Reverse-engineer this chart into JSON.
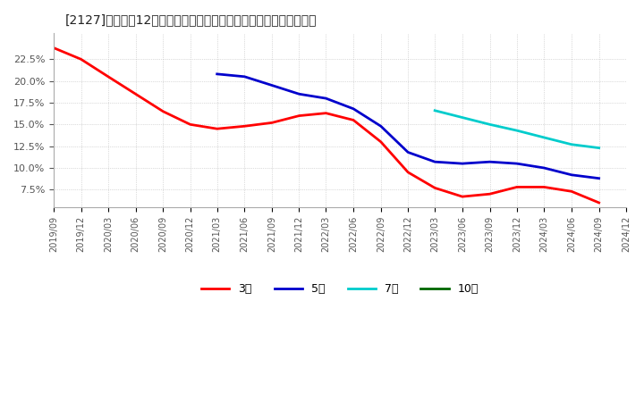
{
  "title": "[2127]　売上高12か月移動合計の対前年同期増減率の平均値の推移",
  "ylabel": "",
  "background_color": "#ffffff",
  "plot_bg_color": "#ffffff",
  "grid_color": "#aaaaaa",
  "ylim": [
    0.055,
    0.255
  ],
  "yticks": [
    0.075,
    0.1,
    0.125,
    0.15,
    0.175,
    0.2,
    0.225
  ],
  "series": {
    "3年": {
      "color": "#ff0000",
      "dates": [
        "2019/09",
        "2019/12",
        "2020/03",
        "2020/06",
        "2020/09",
        "2020/12",
        "2021/03",
        "2021/06",
        "2021/09",
        "2021/12",
        "2022/03",
        "2022/06",
        "2022/09",
        "2022/12",
        "2023/03",
        "2023/06",
        "2023/09",
        "2023/12",
        "2024/03",
        "2024/06",
        "2024/09"
      ],
      "values": [
        0.238,
        0.225,
        0.205,
        0.185,
        0.165,
        0.15,
        0.145,
        0.148,
        0.152,
        0.16,
        0.163,
        0.155,
        0.13,
        0.095,
        0.077,
        0.067,
        0.07,
        0.078,
        0.078,
        0.073,
        0.06
      ]
    },
    "5年": {
      "color": "#0000cc",
      "dates": [
        "2021/03",
        "2021/06",
        "2021/09",
        "2021/12",
        "2022/03",
        "2022/06",
        "2022/09",
        "2022/12",
        "2023/03",
        "2023/06",
        "2023/09",
        "2023/12",
        "2024/03",
        "2024/06",
        "2024/09"
      ],
      "values": [
        0.208,
        0.205,
        0.195,
        0.185,
        0.18,
        0.168,
        0.148,
        0.118,
        0.107,
        0.105,
        0.107,
        0.105,
        0.1,
        0.092,
        0.088
      ]
    },
    "7年": {
      "color": "#00cccc",
      "dates": [
        "2023/03",
        "2023/06",
        "2023/09",
        "2023/12",
        "2024/03",
        "2024/06",
        "2024/09"
      ],
      "values": [
        0.166,
        0.158,
        0.15,
        0.143,
        0.135,
        0.127,
        0.123
      ]
    },
    "10年": {
      "color": "#006600",
      "dates": [],
      "values": []
    }
  },
  "legend_labels": [
    "3年",
    "5年",
    "7年",
    "10年"
  ],
  "legend_colors": [
    "#ff0000",
    "#0000cc",
    "#00cccc",
    "#006600"
  ],
  "x_tick_dates": [
    "2019/09",
    "2019/12",
    "2020/03",
    "2020/06",
    "2020/09",
    "2020/12",
    "2021/03",
    "2021/06",
    "2021/09",
    "2021/12",
    "2022/03",
    "2022/06",
    "2022/09",
    "2022/12",
    "2023/03",
    "2023/06",
    "2023/09",
    "2023/12",
    "2024/03",
    "2024/06",
    "2024/09",
    "2024/12"
  ]
}
